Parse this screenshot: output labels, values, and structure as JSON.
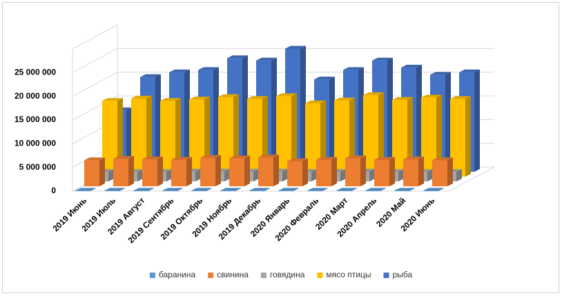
{
  "chart_data": {
    "type": "bar3d",
    "categories": [
      "2019 Июнь",
      "2019 Июль",
      "2019 Август",
      "2019 Сентябрь",
      "2019 Октябрь",
      "2019 Ноябрь",
      "2019 Декабрь",
      "2020 Январь",
      "2020 Февраль",
      "2020 Март",
      "2020 Апрель",
      "2020 Май",
      "2020 Июнь"
    ],
    "series": [
      {
        "name": "баранина",
        "color": "#5b9bd5",
        "values": [
          100000,
          100000,
          100000,
          100000,
          100000,
          100000,
          100000,
          100000,
          100000,
          100000,
          100000,
          100000,
          100000
        ]
      },
      {
        "name": "свинина",
        "color": "#ed7d31",
        "values": [
          5500000,
          5800000,
          5700000,
          5600000,
          6000000,
          5900000,
          6100000,
          5300000,
          5600000,
          5900000,
          5600000,
          5700000,
          5500000
        ]
      },
      {
        "name": "говядина",
        "color": "#a5a5a5",
        "values": [
          2000000,
          2000000,
          2000000,
          2100000,
          2100000,
          2100000,
          2100000,
          2000000,
          2000000,
          2100000,
          2000000,
          2000000,
          2000000
        ]
      },
      {
        "name": "мясо птицы",
        "color": "#ffc000",
        "values": [
          16000000,
          16500000,
          16000000,
          16300000,
          16800000,
          16400000,
          17000000,
          15500000,
          16100000,
          17200000,
          16200000,
          16700000,
          16400000
        ]
      },
      {
        "name": "рыба",
        "color": "#4472c4",
        "values": [
          13000000,
          20000000,
          21000000,
          21500000,
          24000000,
          23500000,
          26000000,
          19500000,
          21500000,
          23500000,
          22000000,
          20500000,
          21000000
        ]
      }
    ],
    "ylim": [
      0,
      30000000
    ],
    "yticks": [
      0,
      {
        "value": 5000000,
        "label": "5 000 000"
      },
      {
        "value": 10000000,
        "label": "10 000 000"
      },
      {
        "value": 15000000,
        "label": "15 000 000"
      },
      {
        "value": 20000000,
        "label": "20 000 000"
      },
      {
        "value": 25000000,
        "label": "25 000 000"
      }
    ],
    "grid": true,
    "legend": "bottom"
  }
}
